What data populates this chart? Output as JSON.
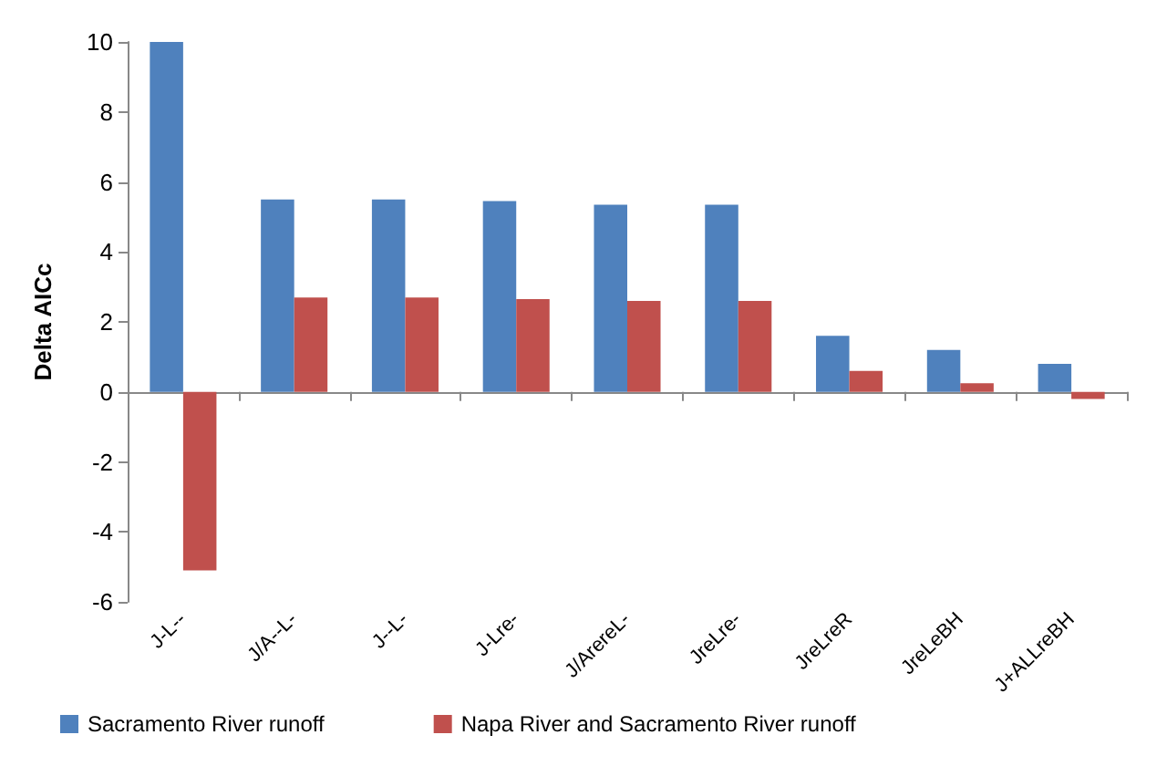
{
  "chart_data": {
    "type": "bar",
    "ylabel": "Delta AICc",
    "categories": [
      "J-L--",
      "J/A--L-",
      "J--L-",
      "J-Lre-",
      "J/ArereL-",
      "JreLre-",
      "JreLreR",
      "JreLeBH",
      "J+ALLreBH"
    ],
    "series": [
      {
        "name": "Sacramento River runoff",
        "color": "#4f81bd",
        "values": [
          10,
          5.5,
          5.5,
          5.45,
          5.35,
          5.35,
          1.6,
          1.2,
          0.8
        ]
      },
      {
        "name": "Napa River and Sacramento River runoff",
        "color": "#c0504d",
        "values": [
          -5.1,
          2.7,
          2.7,
          2.65,
          2.6,
          2.6,
          0.6,
          0.25,
          -0.2
        ]
      }
    ],
    "ylim": [
      -6,
      10
    ],
    "yticks": [
      -6,
      -4,
      -2,
      0,
      2,
      4,
      6,
      8,
      10
    ],
    "legend": "bottom"
  }
}
